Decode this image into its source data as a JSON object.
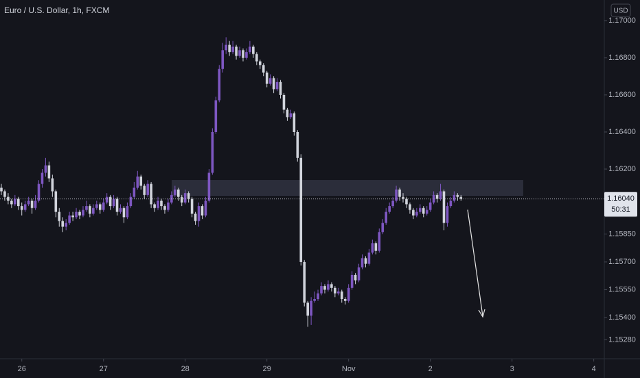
{
  "chart_data": {
    "type": "candlestick",
    "title": "Euro / U.S. Dollar, 1h, FXCM",
    "currency": "USD",
    "up_color": "#7e57c2",
    "down_color": "#d1d4dc",
    "last_price": {
      "value": 1.1604,
      "label": "1.16040"
    },
    "countdown": "50:31",
    "ylim": [
      1.15178,
      1.17111
    ],
    "yticks": [
      {
        "value": 1.17,
        "label": "1.17000"
      },
      {
        "value": 1.168,
        "label": "1.16800"
      },
      {
        "value": 1.166,
        "label": "1.16600"
      },
      {
        "value": 1.164,
        "label": "1.16400"
      },
      {
        "value": 1.162,
        "label": "1.16200"
      },
      {
        "value": 1.1585,
        "label": "1.15850"
      },
      {
        "value": 1.157,
        "label": "1.15700"
      },
      {
        "value": 1.1555,
        "label": "1.15550"
      },
      {
        "value": 1.154,
        "label": "1.15400"
      },
      {
        "value": 1.1528,
        "label": "1.15280"
      }
    ],
    "xlim": [
      -0.4,
      177.1
    ],
    "xticks": [
      {
        "value": 6,
        "label": "26"
      },
      {
        "value": 30,
        "label": "27"
      },
      {
        "value": 54,
        "label": "28"
      },
      {
        "value": 78,
        "label": "29"
      },
      {
        "value": 102,
        "label": "Nov"
      },
      {
        "value": 126,
        "label": "2"
      },
      {
        "value": 150,
        "label": "3"
      },
      {
        "value": 174,
        "label": "4"
      }
    ],
    "open": [
      1.161,
      1.1608,
      1.1605,
      1.1603,
      1.1601,
      1.1604,
      1.16,
      1.1598,
      1.1601,
      1.1603,
      1.1599,
      1.1603,
      1.1612,
      1.1618,
      1.1622,
      1.1615,
      1.1608,
      1.1597,
      1.1592,
      1.1589,
      1.1591,
      1.1595,
      1.1594,
      1.1597,
      1.1595,
      1.1598,
      1.16,
      1.1596,
      1.1599,
      1.1601,
      1.1598,
      1.1602,
      1.1605,
      1.16,
      1.1604,
      1.1597,
      1.1599,
      1.1594,
      1.16,
      1.1605,
      1.161,
      1.1616,
      1.1611,
      1.1606,
      1.1612,
      1.1601,
      1.1599,
      1.1603,
      1.16,
      1.1598,
      1.1602,
      1.1606,
      1.1609,
      1.1605,
      1.1602,
      1.1607,
      1.1604,
      1.1596,
      1.1592,
      1.16,
      1.1595,
      1.1603,
      1.1618,
      1.164,
      1.1657,
      1.1674,
      1.1684,
      1.1687,
      1.1683,
      1.1686,
      1.1681,
      1.1684,
      1.168,
      1.1683,
      1.1686,
      1.1682,
      1.1678,
      1.1676,
      1.1672,
      1.1666,
      1.1669,
      1.1663,
      1.1667,
      1.166,
      1.1652,
      1.1648,
      1.165,
      1.164,
      1.1626,
      1.157,
      1.1548,
      1.1541,
      1.1549,
      1.155,
      1.1553,
      1.1557,
      1.1555,
      1.1558,
      1.1556,
      1.1553,
      1.1554,
      1.155,
      1.1549,
      1.1556,
      1.1563,
      1.156,
      1.1567,
      1.1572,
      1.1569,
      1.1575,
      1.158,
      1.1576,
      1.1586,
      1.1591,
      1.1597,
      1.16,
      1.1603,
      1.1609,
      1.1605,
      1.1604,
      1.1601,
      1.1598,
      1.1595,
      1.1597,
      1.1599,
      1.1596,
      1.1598,
      1.1602,
      1.1606,
      1.1604,
      1.1608,
      1.1591,
      1.16,
      1.1603,
      1.1606,
      1.1605
    ],
    "high": [
      1.1612,
      1.1609,
      1.1607,
      1.1604,
      1.1606,
      1.1605,
      1.1602,
      1.1603,
      1.1605,
      1.1604,
      1.1606,
      1.1614,
      1.162,
      1.1626,
      1.1624,
      1.1617,
      1.1609,
      1.1599,
      1.1594,
      1.1593,
      1.1597,
      1.1597,
      1.1599,
      1.1598,
      1.16,
      1.1603,
      1.1601,
      1.1601,
      1.1603,
      1.1602,
      1.1604,
      1.1607,
      1.1606,
      1.1606,
      1.1605,
      1.1601,
      1.16,
      1.1602,
      1.1607,
      1.1613,
      1.1619,
      1.1617,
      1.1612,
      1.1614,
      1.1613,
      1.1602,
      1.1605,
      1.1604,
      1.1601,
      1.1604,
      1.1608,
      1.1611,
      1.161,
      1.1606,
      1.1609,
      1.1608,
      1.1605,
      1.1597,
      1.1602,
      1.1601,
      1.1605,
      1.162,
      1.1642,
      1.1659,
      1.1676,
      1.1688,
      1.1691,
      1.1689,
      1.1689,
      1.1687,
      1.1686,
      1.1685,
      1.1685,
      1.1689,
      1.1687,
      1.1683,
      1.1679,
      1.1677,
      1.1673,
      1.1671,
      1.167,
      1.1669,
      1.1668,
      1.1661,
      1.1653,
      1.1652,
      1.1651,
      1.1641,
      1.1628,
      1.1571,
      1.1549,
      1.1551,
      1.1554,
      1.1555,
      1.1559,
      1.1558,
      1.156,
      1.1559,
      1.1557,
      1.1556,
      1.1555,
      1.1551,
      1.1558,
      1.1565,
      1.1564,
      1.1569,
      1.1574,
      1.1573,
      1.1577,
      1.1582,
      1.1581,
      1.1588,
      1.1593,
      1.1599,
      1.1602,
      1.1605,
      1.1611,
      1.161,
      1.1607,
      1.1605,
      1.1602,
      1.1599,
      1.1599,
      1.1601,
      1.16,
      1.16,
      1.1604,
      1.1608,
      1.1607,
      1.1612,
      1.1609,
      1.1602,
      1.1605,
      1.1608,
      1.1607,
      1.1606
    ],
    "low": [
      1.1606,
      1.1603,
      1.1601,
      1.1599,
      1.16,
      1.1598,
      1.1595,
      1.1597,
      1.16,
      1.1596,
      1.1598,
      1.1602,
      1.161,
      1.1616,
      1.1613,
      1.1605,
      1.1594,
      1.1589,
      1.1586,
      1.1587,
      1.159,
      1.1592,
      1.1593,
      1.1593,
      1.1594,
      1.1597,
      1.1594,
      1.1595,
      1.1598,
      1.1596,
      1.1597,
      1.1601,
      1.1598,
      1.1599,
      1.1595,
      1.1596,
      1.1591,
      1.1593,
      1.1599,
      1.1604,
      1.1609,
      1.1609,
      1.1604,
      1.1605,
      1.1599,
      1.1597,
      1.1598,
      1.1598,
      1.1596,
      1.1597,
      1.1601,
      1.1605,
      1.1603,
      1.16,
      1.1601,
      1.1602,
      1.1594,
      1.159,
      1.1589,
      1.1593,
      1.1594,
      1.1602,
      1.1617,
      1.1639,
      1.1656,
      1.1672,
      1.1682,
      1.1681,
      1.1682,
      1.1679,
      1.168,
      1.1678,
      1.1679,
      1.1682,
      1.168,
      1.1676,
      1.1674,
      1.167,
      1.1664,
      1.1665,
      1.1661,
      1.1662,
      1.1658,
      1.165,
      1.1646,
      1.1647,
      1.1638,
      1.1624,
      1.1568,
      1.1546,
      1.1535,
      1.1536,
      1.1548,
      1.1549,
      1.1552,
      1.1553,
      1.1554,
      1.1554,
      1.1551,
      1.1552,
      1.1548,
      1.1547,
      1.1548,
      1.1555,
      1.1558,
      1.1559,
      1.1566,
      1.1567,
      1.1568,
      1.1574,
      1.1574,
      1.1575,
      1.1585,
      1.159,
      1.1596,
      1.1599,
      1.1602,
      1.1603,
      1.1602,
      1.1599,
      1.1596,
      1.1593,
      1.1594,
      1.1596,
      1.1594,
      1.1595,
      1.1597,
      1.1601,
      1.1602,
      1.1603,
      1.1587,
      1.1589,
      1.1599,
      1.1602,
      1.1603,
      1.1603
    ],
    "close": [
      1.1608,
      1.1605,
      1.1603,
      1.1601,
      1.1604,
      1.16,
      1.1598,
      1.1601,
      1.1603,
      1.1599,
      1.1603,
      1.1612,
      1.1618,
      1.1622,
      1.1615,
      1.1608,
      1.1597,
      1.1592,
      1.1589,
      1.1591,
      1.1595,
      1.1594,
      1.1597,
      1.1595,
      1.1598,
      1.16,
      1.1596,
      1.1599,
      1.1601,
      1.1598,
      1.1602,
      1.1605,
      1.16,
      1.1604,
      1.1597,
      1.1599,
      1.1594,
      1.16,
      1.1605,
      1.161,
      1.1616,
      1.1611,
      1.1606,
      1.1612,
      1.1601,
      1.1599,
      1.1603,
      1.16,
      1.1598,
      1.1602,
      1.1606,
      1.1609,
      1.1605,
      1.1602,
      1.1607,
      1.1604,
      1.1596,
      1.1592,
      1.16,
      1.1595,
      1.1603,
      1.1618,
      1.164,
      1.1657,
      1.1674,
      1.1684,
      1.1687,
      1.1683,
      1.1686,
      1.1681,
      1.1684,
      1.168,
      1.1683,
      1.1686,
      1.1682,
      1.1678,
      1.1676,
      1.1672,
      1.1666,
      1.1669,
      1.1663,
      1.1667,
      1.166,
      1.1652,
      1.1648,
      1.165,
      1.164,
      1.1626,
      1.157,
      1.1548,
      1.1541,
      1.1549,
      1.155,
      1.1553,
      1.1557,
      1.1555,
      1.1558,
      1.1556,
      1.1553,
      1.1554,
      1.155,
      1.1549,
      1.1556,
      1.1563,
      1.156,
      1.1567,
      1.1572,
      1.1569,
      1.1575,
      1.158,
      1.1576,
      1.1586,
      1.1591,
      1.1597,
      1.16,
      1.1603,
      1.1609,
      1.1605,
      1.1604,
      1.1601,
      1.1598,
      1.1595,
      1.1597,
      1.1599,
      1.1596,
      1.1598,
      1.1602,
      1.1606,
      1.1604,
      1.1608,
      1.1591,
      1.16,
      1.1603,
      1.1606,
      1.1605,
      1.1604
    ]
  }
}
